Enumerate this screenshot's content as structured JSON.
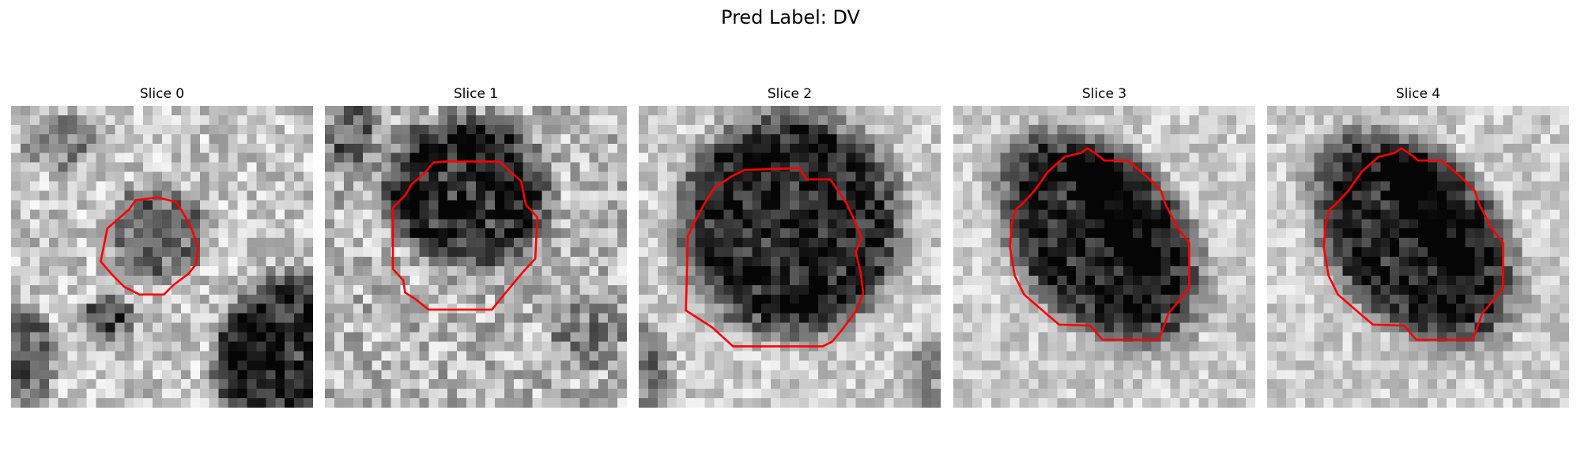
{
  "figure": {
    "title": "Pred Label: DV"
  },
  "panels": [
    {
      "label": "Slice 0",
      "index": 0
    },
    {
      "label": "Slice 1",
      "index": 1
    },
    {
      "label": "Slice 2",
      "index": 2
    },
    {
      "label": "Slice 3",
      "index": 3
    },
    {
      "label": "Slice 4",
      "index": 4
    }
  ],
  "colors": {
    "contour": "#ff0000",
    "background": "#ffffff"
  }
}
